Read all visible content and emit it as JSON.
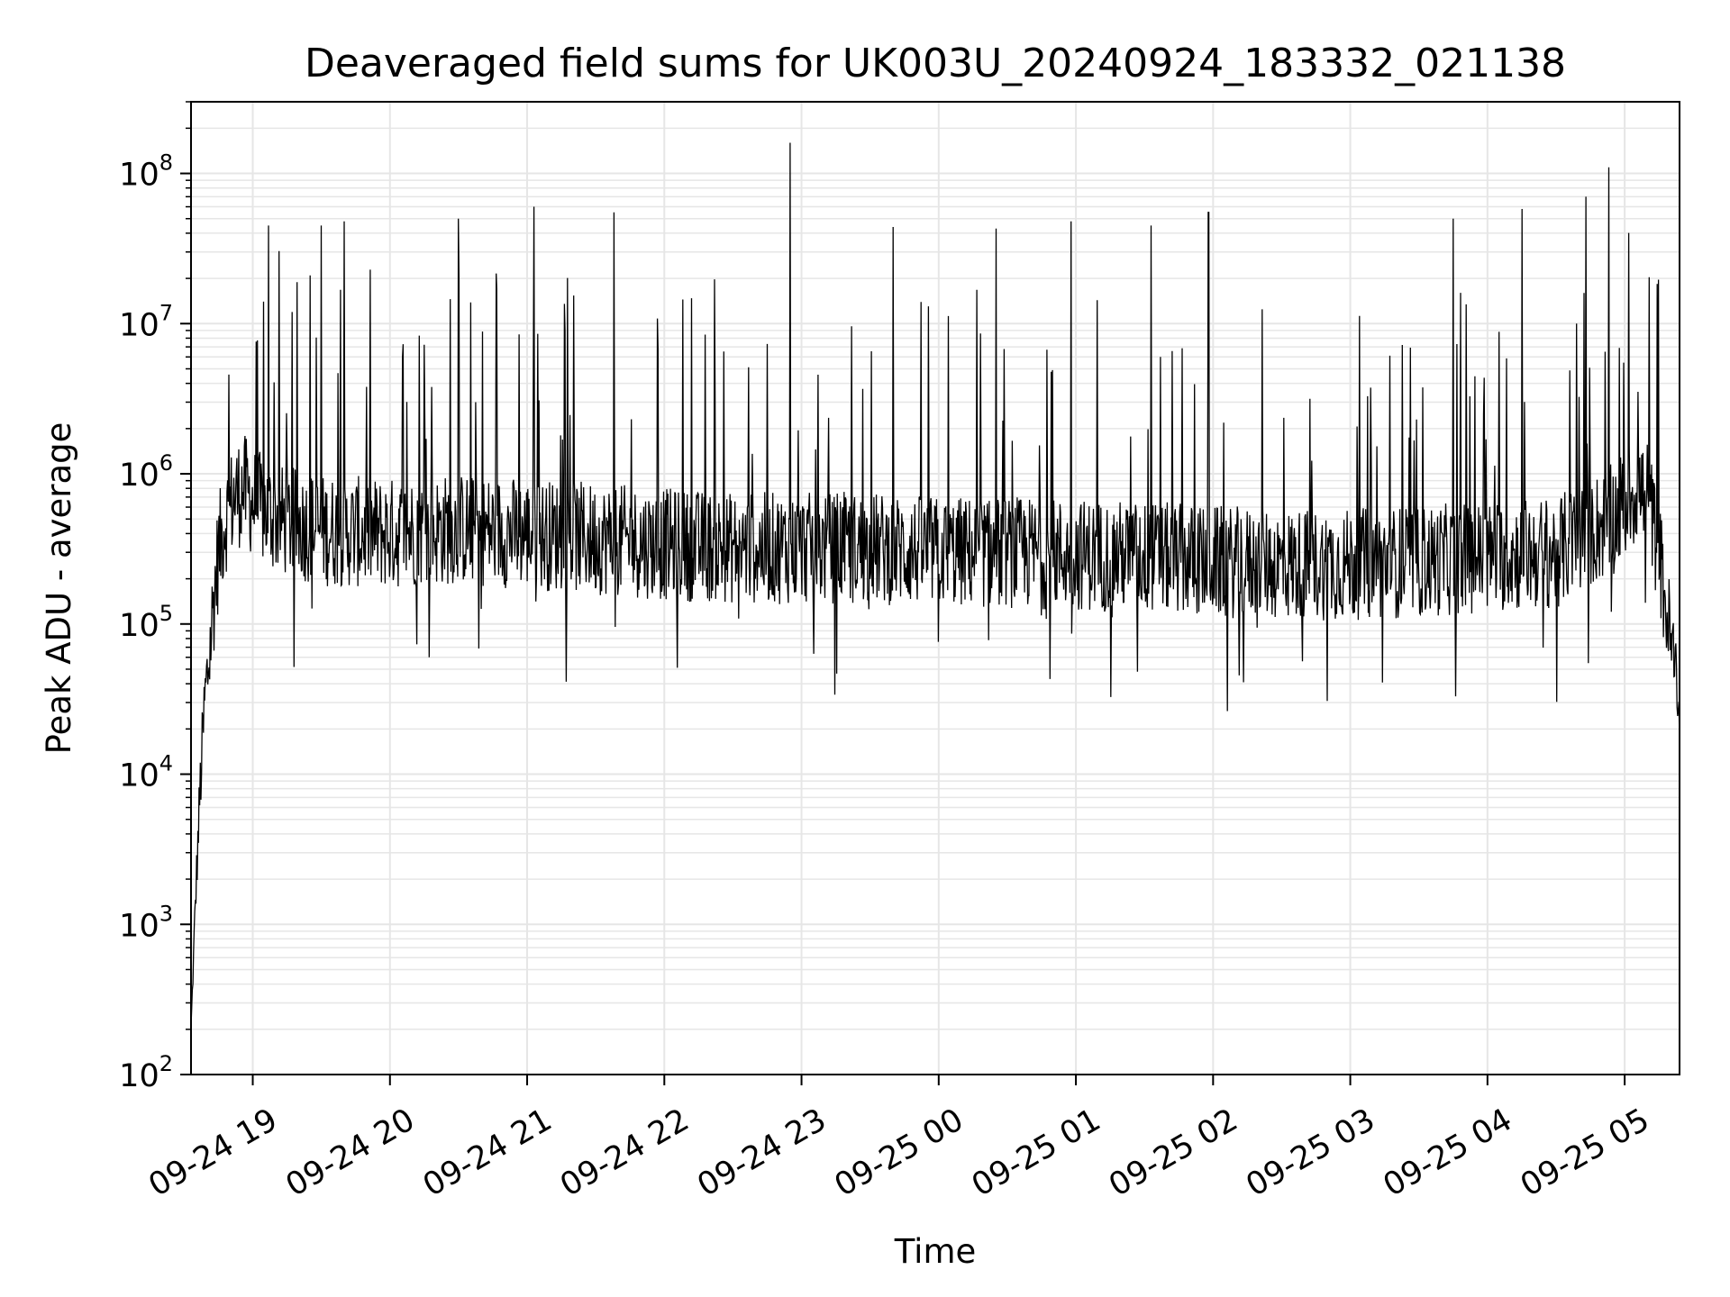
{
  "chart_data": {
    "type": "line",
    "title": "Deaveraged field sums for UK003U_20240924_183332_021138",
    "xlabel": "Time",
    "ylabel": "Peak ADU - average",
    "y_scale": "log",
    "ylim": [
      100,
      300000000
    ],
    "xlim": [
      "2024-09-24 18:33",
      "2024-09-25 05:24"
    ],
    "grid": true,
    "grid_minor": true,
    "line_color": "#000000",
    "grid_color": "#e6e6e6",
    "x_ticks": [
      {
        "value": "2024-09-24 19:00",
        "label": "09-24 19"
      },
      {
        "value": "2024-09-24 20:00",
        "label": "09-24 20"
      },
      {
        "value": "2024-09-24 21:00",
        "label": "09-24 21"
      },
      {
        "value": "2024-09-24 22:00",
        "label": "09-24 22"
      },
      {
        "value": "2024-09-24 23:00",
        "label": "09-24 23"
      },
      {
        "value": "2024-09-25 00:00",
        "label": "09-25 00"
      },
      {
        "value": "2024-09-25 01:00",
        "label": "09-25 01"
      },
      {
        "value": "2024-09-25 02:00",
        "label": "09-25 02"
      },
      {
        "value": "2024-09-25 03:00",
        "label": "09-25 03"
      },
      {
        "value": "2024-09-25 04:00",
        "label": "09-25 04"
      },
      {
        "value": "2024-09-25 05:00",
        "label": "09-25 05"
      }
    ],
    "y_ticks": [
      {
        "value": 100,
        "base": "10",
        "exp": "2"
      },
      {
        "value": 1000,
        "base": "10",
        "exp": "3"
      },
      {
        "value": 10000,
        "base": "10",
        "exp": "4"
      },
      {
        "value": 100000,
        "base": "10",
        "exp": "5"
      },
      {
        "value": 1000000,
        "base": "10",
        "exp": "6"
      },
      {
        "value": 10000000,
        "base": "10",
        "exp": "7"
      },
      {
        "value": 100000000,
        "base": "10",
        "exp": "8"
      }
    ],
    "series": [
      {
        "values": [
          [
            "2024-09-24 18:33",
            200
          ],
          [
            "2024-09-24 18:35",
            1500
          ],
          [
            "2024-09-24 18:37",
            8000
          ],
          [
            "2024-09-24 18:39",
            30000
          ],
          [
            "2024-09-24 18:41",
            60000
          ],
          [
            "2024-09-24 18:43",
            150000
          ],
          [
            "2024-09-24 18:45",
            300000
          ],
          [
            "2024-09-24 18:48",
            500000
          ],
          [
            "2024-09-24 18:52",
            700000
          ],
          [
            "2024-09-24 18:56",
            800000
          ],
          [
            "2024-09-24 19:00",
            650000
          ],
          [
            "2024-09-24 19:10",
            500000
          ],
          [
            "2024-09-24 19:30",
            420000
          ],
          [
            "2024-09-24 20:00",
            400000
          ],
          [
            "2024-09-24 20:30",
            430000
          ],
          [
            "2024-09-24 21:00",
            400000
          ],
          [
            "2024-09-24 21:30",
            370000
          ],
          [
            "2024-09-24 22:00",
            340000
          ],
          [
            "2024-09-24 22:30",
            320000
          ],
          [
            "2024-09-24 23:00",
            320000
          ],
          [
            "2024-09-24 23:30",
            320000
          ],
          [
            "2024-09-25 00:00",
            300000
          ],
          [
            "2024-09-25 00:30",
            300000
          ],
          [
            "2024-09-25 01:00",
            290000
          ],
          [
            "2024-09-25 01:30",
            280000
          ],
          [
            "2024-09-25 02:00",
            260000
          ],
          [
            "2024-09-25 02:30",
            250000
          ],
          [
            "2024-09-25 03:00",
            250000
          ],
          [
            "2024-09-25 03:30",
            260000
          ],
          [
            "2024-09-25 04:00",
            280000
          ],
          [
            "2024-09-25 04:30",
            300000
          ],
          [
            "2024-09-25 04:55",
            500000
          ],
          [
            "2024-09-25 05:05",
            800000
          ],
          [
            "2024-09-25 05:10",
            700000
          ],
          [
            "2024-09-25 05:15",
            300000
          ],
          [
            "2024-09-25 05:19",
            100000
          ],
          [
            "2024-09-25 05:24",
            30000
          ]
        ],
        "peaks": [
          [
            "2024-09-24 19:07",
            45000000
          ],
          [
            "2024-09-24 19:30",
            45000000
          ],
          [
            "2024-09-24 19:40",
            48000000
          ],
          [
            "2024-09-24 20:30",
            50000000
          ],
          [
            "2024-09-24 21:03",
            60000000
          ],
          [
            "2024-09-24 21:38",
            55000000
          ],
          [
            "2024-09-24 22:55",
            160000000
          ],
          [
            "2024-09-24 23:40",
            44000000
          ],
          [
            "2024-09-25 00:25",
            43000000
          ],
          [
            "2024-09-25 00:58",
            48000000
          ],
          [
            "2024-09-25 01:33",
            45000000
          ],
          [
            "2024-09-25 01:58",
            55000000
          ],
          [
            "2024-09-25 03:45",
            50000000
          ],
          [
            "2024-09-25 04:15",
            58000000
          ],
          [
            "2024-09-25 04:43",
            70000000
          ],
          [
            "2024-09-25 04:53",
            110000000
          ]
        ]
      }
    ]
  }
}
